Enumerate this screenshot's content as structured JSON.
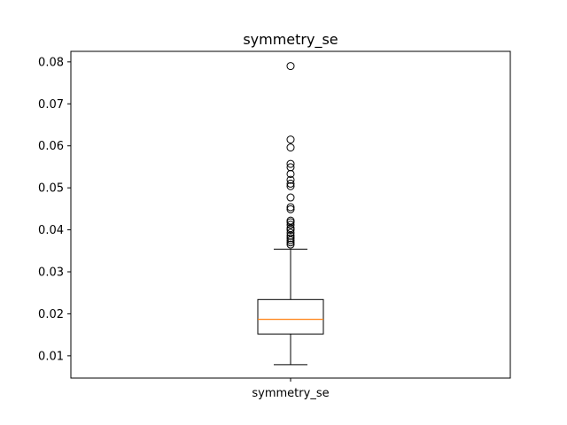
{
  "chart_data": {
    "type": "boxplot",
    "title": "symmetry_se",
    "categories": [
      "symmetry_se"
    ],
    "ylim": [
      0.0047,
      0.0825
    ],
    "y_ticks": [
      0.01,
      0.02,
      0.03,
      0.04,
      0.05,
      0.06,
      0.07,
      0.08
    ],
    "y_tick_labels": [
      "0.01",
      "0.02",
      "0.03",
      "0.04",
      "0.05",
      "0.06",
      "0.07",
      "0.08"
    ],
    "grid": false,
    "box": {
      "whisker_low": 0.0079,
      "q1": 0.0152,
      "median": 0.0187,
      "q3": 0.0234,
      "whisker_high": 0.0354
    },
    "outliers": [
      0.0365,
      0.037,
      0.0375,
      0.038,
      0.0386,
      0.0393,
      0.04,
      0.0404,
      0.0412,
      0.0418,
      0.0422,
      0.0449,
      0.0454,
      0.0477,
      0.0504,
      0.051,
      0.0519,
      0.0533,
      0.0549,
      0.0557,
      0.0596,
      0.0615,
      0.079
    ],
    "colors": {
      "box": "#000000",
      "median": "#ff7f0e",
      "outlier": "#000000"
    }
  }
}
